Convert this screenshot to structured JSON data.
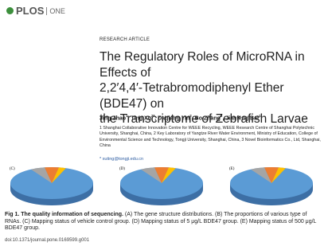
{
  "header": {
    "logo": "PLOS",
    "journal": "ONE"
  },
  "article": {
    "type": "RESEARCH ARTICLE",
    "title_lines": [
      "The Regulatory Roles of MicroRNA in Effects of",
      "2,2′4,4′-Tetrabromodiphenyl Ether (BDE47) on",
      "the Transcriptome of Zebrafish Larvae"
    ],
    "authors": [
      {
        "name": "Jing Zhao",
        "sup": "1"
      },
      {
        "name": "Ting Xu",
        "sup": "2*"
      },
      {
        "name": "Daqiang Yin",
        "sup": "2"
      },
      {
        "name": "Bo Zhang",
        "sup": "3"
      },
      {
        "name": "Jianfeng Bai",
        "sup": "1"
      }
    ],
    "affiliations": "1 Shanghai Collaborative Innovation Centre for WEEE Recycling, WEEE Research Centre of Shanghai Polytechnic University, Shanghai, China, 2 Key Laboratory of Yangtze River Water Environment, Ministry of Education, College of Environmental Science and Technology, Tongji University, Shanghai, China, 3 Novel Bioinformatics Co., Ltd, Shanghai, China",
    "email": "* xuting@tongji.edu.cn"
  },
  "figure": {
    "panels": [
      "(C)",
      "(D)",
      "(E)"
    ],
    "caption_label": "Fig 1. The quality information of sequencing.",
    "caption_text": "(A) The gene structure distributions. (B) The proportions of various type of RNAs. (C) Mapping status of vehicle control group. (D) Mapping status of 5 μg/L BDE47 group. (E) Mapping status of 500 μg/L BDE47 group.",
    "doi": "doi:10.1371/journal.pone.0169599.g001"
  }
}
